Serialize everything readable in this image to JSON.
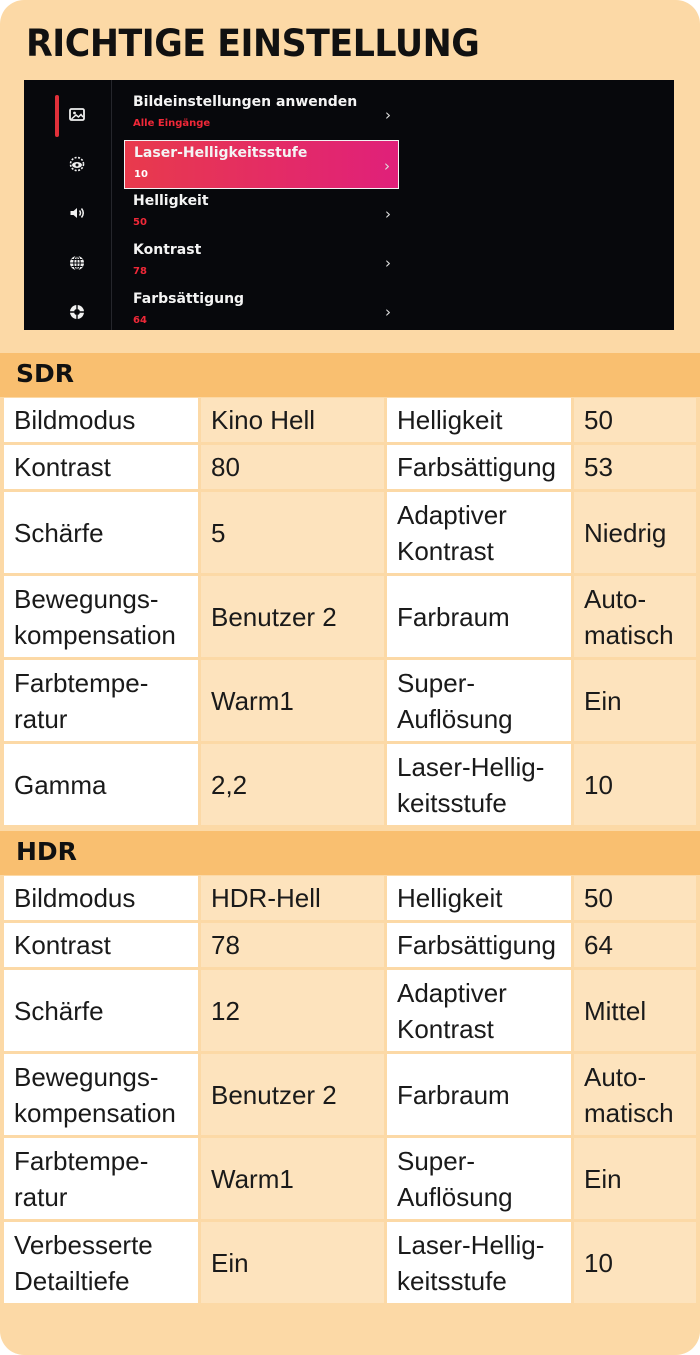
{
  "title": "RICHTIGE EINSTELLUNG",
  "tv_menu": {
    "items": [
      {
        "label": "Bildeinstellungen anwenden",
        "value": "Alle Eingänge"
      },
      {
        "label": "Laser-Helligkeitsstufe",
        "value": "10"
      },
      {
        "label": "Helligkeit",
        "value": "50"
      },
      {
        "label": "Kontrast",
        "value": "78"
      },
      {
        "label": "Farbsättigung",
        "value": "64"
      }
    ],
    "chevron": "›",
    "icons": [
      "picture-icon",
      "eye-icon",
      "speaker-icon",
      "globe-icon",
      "support-icon"
    ]
  },
  "sdr": {
    "header": "SDR",
    "rows": [
      {
        "k1": "Bildmodus",
        "v1": "Kino Hell",
        "k2": "Helligkeit",
        "v2": "50"
      },
      {
        "k1": "Kontrast",
        "v1": "80",
        "k2": "Farbsättigung",
        "v2": "53"
      },
      {
        "k1": "Schärfe",
        "v1": "5",
        "k2": "Adaptiver Kontrast",
        "v2": "Niedrig"
      },
      {
        "k1": "Bewegungs-kompensation",
        "v1": "Benutzer 2",
        "k2": "Farbraum",
        "v2": "Auto-matisch"
      },
      {
        "k1": "Farbtempe-ratur",
        "v1": "Warm1",
        "k2": "Super-Auflösung",
        "v2": "Ein"
      },
      {
        "k1": "Gamma",
        "v1": "2,2",
        "k2": "Laser-Hellig-keitsstufe",
        "v2": "10"
      }
    ]
  },
  "hdr": {
    "header": "HDR",
    "rows": [
      {
        "k1": "Bildmodus",
        "v1": "HDR-Hell",
        "k2": "Helligkeit",
        "v2": "50"
      },
      {
        "k1": "Kontrast",
        "v1": "78",
        "k2": "Farbsättigung",
        "v2": "64"
      },
      {
        "k1": "Schärfe",
        "v1": "12",
        "k2": "Adaptiver Kontrast",
        "v2": "Mittel"
      },
      {
        "k1": "Bewegungs-kompensation",
        "v1": "Benutzer 2",
        "k2": "Farbraum",
        "v2": "Auto-matisch"
      },
      {
        "k1": "Farbtempe-ratur",
        "v1": "Warm1",
        "k2": "Super-Auflösung",
        "v2": "Ein"
      },
      {
        "k1": "Verbesserte Detailtiefe",
        "v1": "Ein",
        "k2": "Laser-Hellig-keitsstufe",
        "v2": "10"
      }
    ]
  }
}
